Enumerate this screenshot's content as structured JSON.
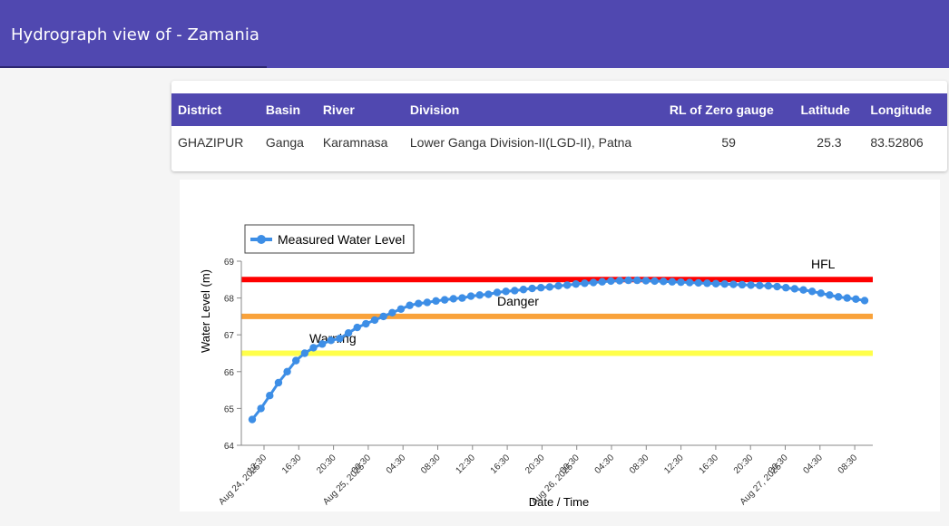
{
  "header": {
    "title": "Hydrograph view of - Zamania"
  },
  "station_table": {
    "columns": [
      "District",
      "Basin",
      "River",
      "Division",
      "RL of Zero gauge",
      "Latitude",
      "Longitude"
    ],
    "row": [
      "GHAZIPUR",
      "Ganga",
      "Karamnasa",
      "Lower Ganga Division-II(LGD-II), Patna",
      "59",
      "25.3",
      "83.52806"
    ]
  },
  "chart_data": {
    "type": "line",
    "xlabel": "Date / Time",
    "ylabel": "Water Level (m)",
    "ylim": [
      64,
      69
    ],
    "yticks": [
      64,
      65,
      66,
      67,
      68,
      69
    ],
    "x_ticks": [
      "12:30",
      "16:30",
      "20:30",
      "00:30",
      "04:30",
      "08:30",
      "12:30",
      "16:30",
      "20:30",
      "00:30",
      "04:30",
      "08:30",
      "12:30",
      "16:30",
      "20:30",
      "00:30",
      "04:30",
      "08:30"
    ],
    "x_date_labels": [
      {
        "tick": 0,
        "label": "Aug 24, 2025"
      },
      {
        "tick": 3,
        "label": "Aug 25, 2025"
      },
      {
        "tick": 9,
        "label": "Aug 26, 2025"
      },
      {
        "tick": 15,
        "label": "Aug 27, 2025"
      }
    ],
    "legend": {
      "position": "top-left",
      "entries": [
        "Measured Water Level"
      ]
    },
    "thresholds": [
      {
        "name": "HFL",
        "value": 68.5,
        "color": "#ff0000"
      },
      {
        "name": "Danger",
        "value": 67.5,
        "color": "#f9a23a"
      },
      {
        "name": "Warning",
        "value": 66.5,
        "color": "#ffff4a"
      }
    ],
    "series": [
      {
        "name": "Measured Water Level",
        "color": "#3d8ee6",
        "values": [
          64.7,
          65.0,
          65.35,
          65.7,
          66.0,
          66.3,
          66.5,
          66.65,
          66.75,
          66.85,
          66.9,
          67.05,
          67.2,
          67.3,
          67.4,
          67.5,
          67.6,
          67.7,
          67.8,
          67.85,
          67.88,
          67.92,
          67.95,
          67.98,
          68.0,
          68.05,
          68.08,
          68.1,
          68.15,
          68.18,
          68.2,
          68.23,
          68.26,
          68.28,
          68.3,
          68.33,
          68.35,
          68.38,
          68.4,
          68.42,
          68.44,
          68.46,
          68.47,
          68.48,
          68.48,
          68.47,
          68.46,
          68.45,
          68.44,
          68.43,
          68.42,
          68.41,
          68.4,
          68.39,
          68.38,
          68.37,
          68.36,
          68.35,
          68.34,
          68.33,
          68.31,
          68.28,
          68.25,
          68.22,
          68.18,
          68.13,
          68.08,
          68.03,
          68.0,
          67.97,
          67.93
        ]
      }
    ]
  }
}
